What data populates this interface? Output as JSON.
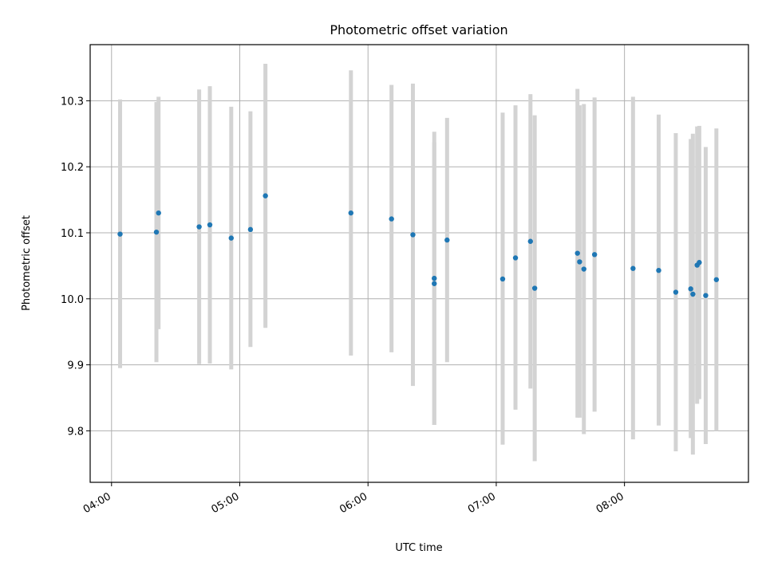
{
  "chart_data": {
    "type": "scatter",
    "title": "Photometric offset variation",
    "xlabel": "UTC time",
    "ylabel": "Photometric offset",
    "x_ticks": [
      "04:00",
      "05:00",
      "06:00",
      "07:00",
      "08:00"
    ],
    "y_ticks": [
      "9.8",
      "9.9",
      "10.0",
      "10.1",
      "10.2",
      "10.3"
    ],
    "xlim": [
      "03:50",
      "08:58"
    ],
    "ylim": [
      9.722,
      10.385
    ],
    "grid": true,
    "colors": {
      "points": "#1f77b4",
      "errorbars": "#d3d3d3",
      "grid": "#b0b0b0"
    },
    "points": [
      {
        "x": "04:04",
        "y": 10.098,
        "ylo": 9.895,
        "yhi": 10.302
      },
      {
        "x": "04:21",
        "y": 10.101,
        "ylo": 9.904,
        "yhi": 10.298
      },
      {
        "x": "04:22",
        "y": 10.13,
        "ylo": 9.954,
        "yhi": 10.306
      },
      {
        "x": "04:41",
        "y": 10.109,
        "ylo": 9.901,
        "yhi": 10.317
      },
      {
        "x": "04:46",
        "y": 10.112,
        "ylo": 9.902,
        "yhi": 10.322
      },
      {
        "x": "04:56",
        "y": 10.092,
        "ylo": 9.893,
        "yhi": 10.291
      },
      {
        "x": "05:05",
        "y": 10.105,
        "ylo": 9.927,
        "yhi": 10.284
      },
      {
        "x": "05:12",
        "y": 10.156,
        "ylo": 9.956,
        "yhi": 10.356
      },
      {
        "x": "05:52",
        "y": 10.13,
        "ylo": 9.914,
        "yhi": 10.346
      },
      {
        "x": "06:11",
        "y": 10.121,
        "ylo": 9.919,
        "yhi": 10.324
      },
      {
        "x": "06:21",
        "y": 10.097,
        "ylo": 9.868,
        "yhi": 10.326
      },
      {
        "x": "06:31",
        "y": 10.023,
        "ylo": 9.809,
        "yhi": 10.237
      },
      {
        "x": "06:31",
        "y": 10.031,
        "ylo": 9.809,
        "yhi": 10.253
      },
      {
        "x": "06:37",
        "y": 10.089,
        "ylo": 9.904,
        "yhi": 10.274
      },
      {
        "x": "07:03",
        "y": 10.03,
        "ylo": 9.779,
        "yhi": 10.282
      },
      {
        "x": "07:09",
        "y": 10.062,
        "ylo": 9.832,
        "yhi": 10.293
      },
      {
        "x": "07:16",
        "y": 10.087,
        "ylo": 9.864,
        "yhi": 10.31
      },
      {
        "x": "07:18",
        "y": 10.016,
        "ylo": 9.754,
        "yhi": 10.278
      },
      {
        "x": "07:38",
        "y": 10.069,
        "ylo": 9.82,
        "yhi": 10.318
      },
      {
        "x": "07:39",
        "y": 10.056,
        "ylo": 9.82,
        "yhi": 10.293
      },
      {
        "x": "07:41",
        "y": 10.045,
        "ylo": 9.795,
        "yhi": 10.295
      },
      {
        "x": "07:46",
        "y": 10.067,
        "ylo": 9.829,
        "yhi": 10.305
      },
      {
        "x": "08:04",
        "y": 10.046,
        "ylo": 9.787,
        "yhi": 10.306
      },
      {
        "x": "08:16",
        "y": 10.043,
        "ylo": 9.808,
        "yhi": 10.279
      },
      {
        "x": "08:24",
        "y": 10.01,
        "ylo": 9.769,
        "yhi": 10.251
      },
      {
        "x": "08:31",
        "y": 10.015,
        "ylo": 9.789,
        "yhi": 10.242
      },
      {
        "x": "08:32",
        "y": 10.007,
        "ylo": 9.764,
        "yhi": 10.25
      },
      {
        "x": "08:34",
        "y": 10.051,
        "ylo": 9.841,
        "yhi": 10.261
      },
      {
        "x": "08:35",
        "y": 10.055,
        "ylo": 9.848,
        "yhi": 10.262
      },
      {
        "x": "08:38",
        "y": 10.005,
        "ylo": 9.78,
        "yhi": 10.23
      },
      {
        "x": "08:43",
        "y": 10.029,
        "ylo": 9.8,
        "yhi": 10.258
      }
    ]
  }
}
